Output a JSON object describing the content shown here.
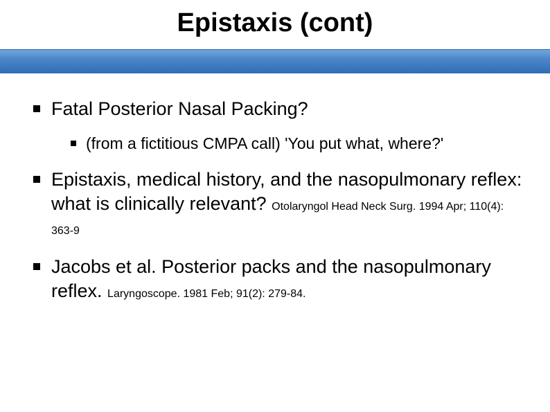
{
  "slide": {
    "title": "Epistaxis (cont)",
    "background_color": "#ffffff",
    "band_gradient_top": "#6fa6dd",
    "band_gradient_mid": "#4a86c8",
    "band_gradient_bottom": "#2f6db4",
    "title_fontsize": 38,
    "body_fontsize": 27,
    "sub_fontsize": 23,
    "citation_fontsize": 16,
    "bullets": [
      {
        "text": "Fatal Posterior Nasal Packing?",
        "children": [
          {
            "text": "(from a fictitious CMPA call) 'You put what, where?'"
          }
        ]
      },
      {
        "text": "Epistaxis, medical history, and the nasopulmonary reflex: what is clinically relevant?",
        "citation": "Otolaryngol Head Neck Surg. 1994 Apr; 110(4): 363-9"
      },
      {
        "text": "Jacobs et al. Posterior packs and the nasopulmonary reflex.",
        "citation": "Laryngoscope. 1981 Feb; 91(2): 279-84."
      }
    ]
  }
}
